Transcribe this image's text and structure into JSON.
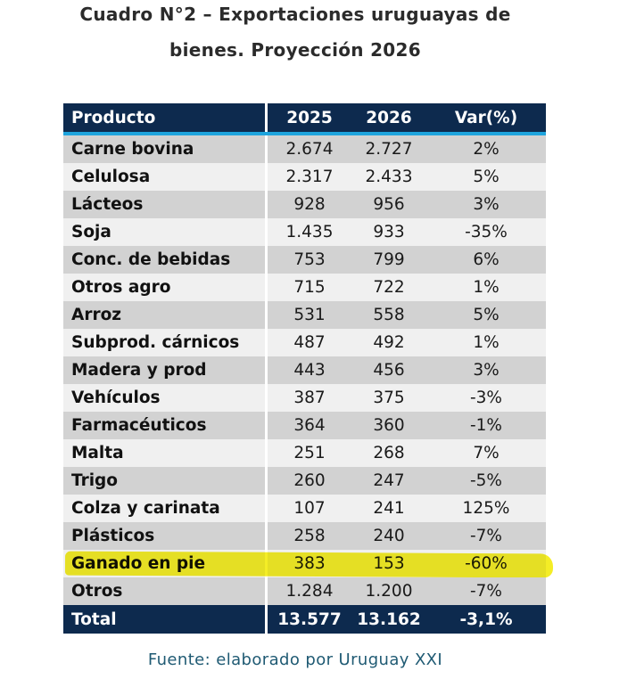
{
  "title_line1": "Cuadro N°2 – Exportaciones uruguayas de",
  "title_line2": "bienes. Proyección 2026",
  "headers": [
    "Producto",
    "2025",
    "2026",
    "Var(%)"
  ],
  "rows": [
    [
      "Carne bovina",
      "2.674",
      "2.727",
      "2%"
    ],
    [
      "Celulosa",
      "2.317",
      "2.433",
      "5%"
    ],
    [
      "Lácteos",
      "928",
      "956",
      "3%"
    ],
    [
      "Soja",
      "1.435",
      "933",
      "-35%"
    ],
    [
      "Conc. de bebidas",
      "753",
      "799",
      "6%"
    ],
    [
      "Otros agro",
      "715",
      "722",
      "1%"
    ],
    [
      "Arroz",
      "531",
      "558",
      "5%"
    ],
    [
      "Subprod. cárnicos",
      "487",
      "492",
      "1%"
    ],
    [
      "Madera y prod",
      "443",
      "456",
      "3%"
    ],
    [
      "Vehículos",
      "387",
      "375",
      "-3%"
    ],
    [
      "Farmacéuticos",
      "364",
      "360",
      "-1%"
    ],
    [
      "Malta",
      "251",
      "268",
      "7%"
    ],
    [
      "Trigo",
      "260",
      "247",
      "-5%"
    ],
    [
      "Colza y carinata",
      "107",
      "241",
      "125%"
    ],
    [
      "Plásticos",
      "258",
      "240",
      "-7%"
    ],
    [
      "Ganado en pie",
      "383",
      "153",
      "-60%"
    ],
    [
      "Otros",
      "1.284",
      "1.200",
      "-7%"
    ]
  ],
  "highlighted_row": 15,
  "total": [
    "Total",
    "13.577",
    "13.162",
    "-3,1%"
  ],
  "footer": "Fuente: elaborado por Uruguay XXI",
  "colors": {
    "header_bg": "#0d2a4e",
    "accent_line": "#1ea4dd",
    "highlight": "#f3ea00"
  }
}
